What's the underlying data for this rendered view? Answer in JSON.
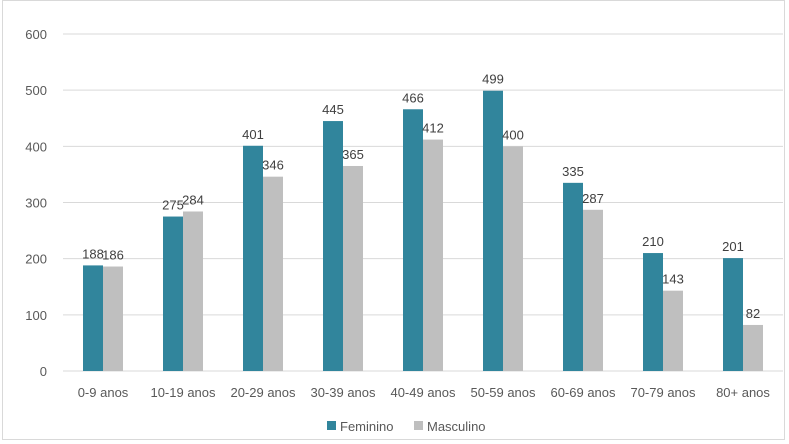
{
  "chart_data": {
    "type": "bar",
    "title": "",
    "xlabel": "",
    "ylabel": "",
    "ylim": [
      0,
      600
    ],
    "yticks": [
      0,
      100,
      200,
      300,
      400,
      500,
      600
    ],
    "ytick_labels": [
      "0",
      "100",
      "200",
      "300",
      "400",
      "500",
      "600"
    ],
    "grid": true,
    "legend_position": "bottom",
    "categories": [
      "0-9 anos",
      "10-19 anos",
      "20-29 anos",
      "30-39 anos",
      "40-49 anos",
      "50-59 anos",
      "60-69 anos",
      "70-79 anos",
      "80+ anos"
    ],
    "series": [
      {
        "name": "Feminino",
        "color": "#31859c",
        "values": [
          188,
          275,
          401,
          445,
          466,
          499,
          335,
          210,
          201
        ],
        "labels": [
          "188",
          "275",
          "401",
          "445",
          "466",
          "499",
          "335",
          "210",
          "201"
        ]
      },
      {
        "name": "Masculino",
        "color": "#bfbfbf",
        "values": [
          186,
          284,
          346,
          365,
          412,
          400,
          287,
          143,
          82
        ],
        "labels": [
          "186",
          "284",
          "346",
          "365",
          "412",
          "400",
          "287",
          "143",
          "82"
        ]
      }
    ]
  }
}
